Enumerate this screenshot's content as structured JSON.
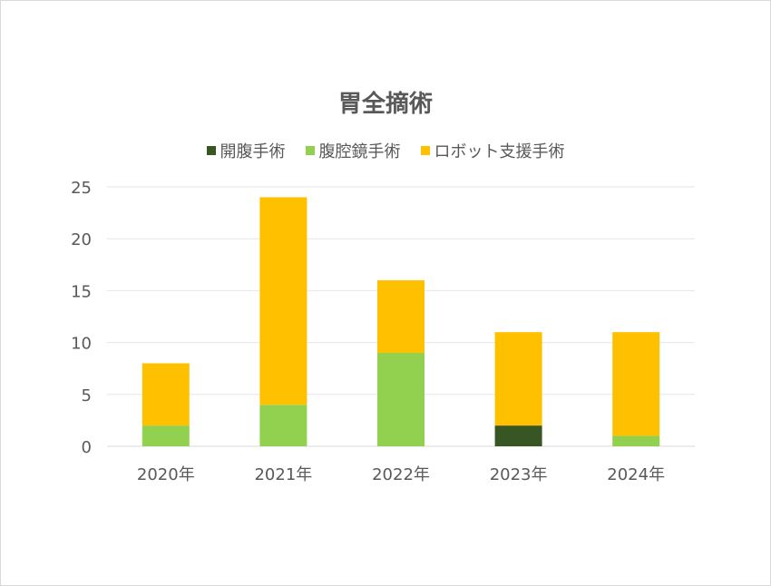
{
  "chart_data": {
    "type": "bar",
    "stacked": true,
    "title": "胃全摘術",
    "categories": [
      "2020年",
      "2021年",
      "2022年",
      "2023年",
      "2024年"
    ],
    "series": [
      {
        "name": "開腹手術",
        "color": "#375623",
        "values": [
          0,
          0,
          0,
          2,
          0
        ]
      },
      {
        "name": "腹腔鏡手術",
        "color": "#92d050",
        "values": [
          2,
          4,
          9,
          0,
          1
        ]
      },
      {
        "name": "ロボット支援手術",
        "color": "#ffc000",
        "values": [
          6,
          20,
          7,
          9,
          10
        ]
      }
    ],
    "ylim": [
      0,
      25
    ],
    "yticks": [
      0,
      5,
      10,
      15,
      20,
      25
    ],
    "grid": true,
    "legend_position": "top"
  }
}
